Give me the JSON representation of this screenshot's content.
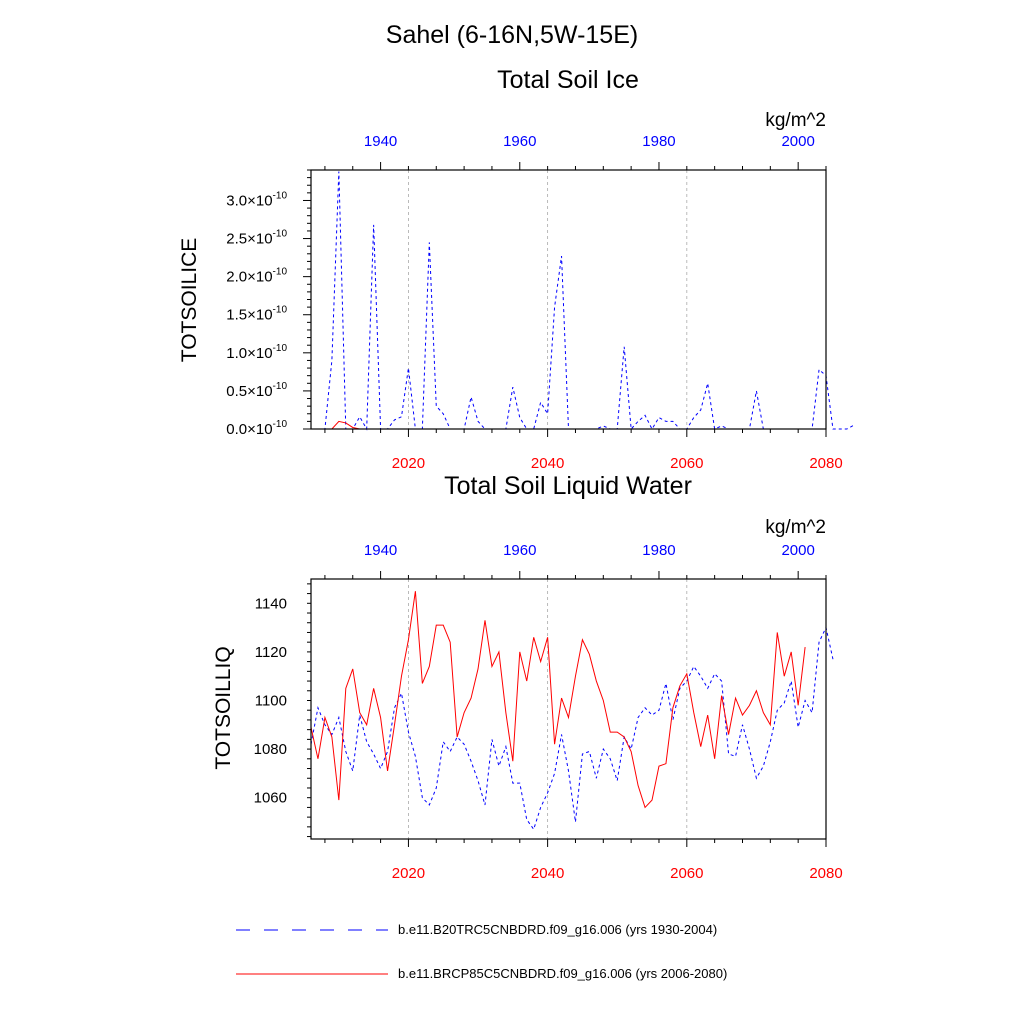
{
  "figure": {
    "main_title": "Sahel (6-16N,5W-15E)",
    "legend": [
      {
        "label": "b.e11.B20TRC5CNBDRD.f09_g16.006 (yrs 1930-2004)",
        "color": "#0000ff",
        "dash": "dashed"
      },
      {
        "label": "b.e11.BRCP85C5CNBDRD.f09_g16.006 (yrs 2006-2080)",
        "color": "#ff0000",
        "dash": "solid"
      }
    ]
  },
  "chart_data": [
    {
      "type": "line",
      "title": "Total Soil Ice",
      "units": "kg/m^2",
      "ylabel": "TOTSOILICE",
      "ylim": [
        0,
        3.4e-10
      ],
      "yticks": [
        0,
        5e-11,
        1e-10,
        1.5e-10,
        2e-10,
        2.5e-10,
        3e-10
      ],
      "ytick_labels": [
        {
          "mant": "0.0",
          "exp": "-10"
        },
        {
          "mant": "0.5",
          "exp": "-10"
        },
        {
          "mant": "1.0",
          "exp": "-10"
        },
        {
          "mant": "1.5",
          "exp": "-10"
        },
        {
          "mant": "2.0",
          "exp": "-10"
        },
        {
          "mant": "2.5",
          "exp": "-10"
        },
        {
          "mant": "3.0",
          "exp": "-10"
        }
      ],
      "times_sign": "×10",
      "bottom_axis": {
        "range": [
          2006,
          2080
        ],
        "ticks": [
          2020,
          2040,
          2060,
          2080
        ],
        "tick_labels": [
          "2020",
          "2040",
          "2060",
          "2080"
        ],
        "color": "#ff0000"
      },
      "top_axis": {
        "range": [
          1930,
          2004
        ],
        "ticks": [
          1940,
          1960,
          1980,
          2000
        ],
        "tick_labels": [
          "1940",
          "1960",
          "1980",
          "2000"
        ],
        "color": "#0000ff"
      },
      "grid_x": [
        2020,
        2040,
        2060
      ],
      "series": [
        {
          "name": "b.e11.B20TRC5CNBDRD.f09_g16.006 (yrs 1930-2004)",
          "color": "#0000ff",
          "dash": "dashed",
          "x_start": 1930,
          "values": [
            0,
            0,
            0,
            9e-11,
            3.38e-10,
            0,
            0,
            1.6e-11,
            0,
            2.68e-10,
            0,
            0,
            1.2e-11,
            1.6e-11,
            8e-11,
            0,
            0,
            2.45e-10,
            3e-11,
            2e-11,
            0,
            0,
            0,
            4.2e-11,
            1e-11,
            0,
            0,
            0,
            0,
            5.5e-11,
            1.5e-11,
            0,
            0,
            3.5e-11,
            2e-11,
            1.6e-10,
            2.27e-10,
            0,
            0,
            0,
            0,
            0,
            4e-12,
            0,
            0,
            1.08e-10,
            0,
            1e-11,
            1.8e-11,
            0,
            1.5e-11,
            1e-11,
            1e-11,
            0,
            0,
            1.5e-11,
            2.5e-11,
            6e-11,
            0,
            4e-12,
            0,
            0,
            0,
            0,
            5e-11,
            0,
            0,
            0,
            0,
            0,
            0,
            0,
            0,
            7.8e-11,
            7e-11,
            0,
            0,
            0,
            5e-12
          ]
        },
        {
          "name": "b.e11.BRCP85C5CNBDRD.f09_g16.006 (yrs 2006-2080)",
          "color": "#ff0000",
          "dash": "solid",
          "x_start": 2006,
          "values": [
            0,
            0,
            0,
            0,
            1e-11,
            8e-12,
            2e-12,
            0,
            0,
            0,
            0,
            0,
            0,
            0,
            0,
            0,
            0,
            0,
            0,
            0,
            0,
            0,
            0,
            0,
            0,
            0,
            0,
            0,
            0,
            0,
            0,
            0,
            0,
            0,
            0,
            0,
            0,
            0,
            0,
            0,
            0,
            0,
            0,
            0,
            0,
            0,
            0,
            0,
            0,
            0,
            0,
            0,
            0,
            0,
            0,
            0,
            0,
            0,
            0,
            0,
            0,
            0,
            0,
            0,
            0,
            0,
            0,
            0,
            0,
            0,
            0,
            0,
            0,
            0,
            0
          ]
        }
      ]
    },
    {
      "type": "line",
      "title": "Total Soil Liquid Water",
      "units": "kg/m^2",
      "ylabel": "TOTSOILLIQ",
      "ylim": [
        1043,
        1150
      ],
      "yticks": [
        1060,
        1080,
        1100,
        1120,
        1140
      ],
      "ytick_labels": [
        "1060",
        "1080",
        "1100",
        "1120",
        "1140"
      ],
      "bottom_axis": {
        "range": [
          2006,
          2080
        ],
        "ticks": [
          2020,
          2040,
          2060,
          2080
        ],
        "tick_labels": [
          "2020",
          "2040",
          "2060",
          "2080"
        ],
        "color": "#ff0000"
      },
      "top_axis": {
        "range": [
          1930,
          2004
        ],
        "ticks": [
          1940,
          1960,
          1980,
          2000
        ],
        "tick_labels": [
          "1940",
          "1960",
          "1980",
          "2000"
        ],
        "color": "#0000ff"
      },
      "grid_x": [
        2020,
        2040,
        2060
      ],
      "series": [
        {
          "name": "b.e11.B20TRC5CNBDRD.f09_g16.006 (yrs 1930-2004)",
          "color": "#0000ff",
          "dash": "dashed",
          "x_start": 1930,
          "values": [
            1082,
            1097,
            1090,
            1086,
            1093,
            1079,
            1071,
            1094,
            1083,
            1078,
            1072,
            1079,
            1097,
            1103,
            1087,
            1077,
            1060,
            1057,
            1064,
            1083,
            1079,
            1085,
            1082,
            1075,
            1067,
            1057,
            1084,
            1073,
            1081,
            1066,
            1066,
            1051,
            1047,
            1056,
            1062,
            1070,
            1086,
            1071,
            1050,
            1078,
            1079,
            1068,
            1080,
            1076,
            1067,
            1085,
            1080,
            1093,
            1097,
            1094,
            1096,
            1107,
            1092,
            1105,
            1108,
            1114,
            1110,
            1105,
            1111,
            1108,
            1078,
            1077,
            1090,
            1080,
            1068,
            1073,
            1083,
            1096,
            1099,
            1108,
            1089,
            1100,
            1095,
            1124,
            1130,
            1117
          ]
        },
        {
          "name": "b.e11.BRCP85C5CNBDRD.f09_g16.006 (yrs 2006-2080)",
          "color": "#ff0000",
          "dash": "solid",
          "x_start": 2006,
          "values": [
            1089,
            1076,
            1093,
            1085,
            1059,
            1105,
            1113,
            1095,
            1090,
            1105,
            1093,
            1071,
            1090,
            1110,
            1125,
            1145,
            1107,
            1114,
            1131,
            1131,
            1124,
            1085,
            1095,
            1101,
            1113,
            1133,
            1114,
            1120,
            1095,
            1075,
            1120,
            1108,
            1126,
            1116,
            1126,
            1082,
            1101,
            1093,
            1110,
            1125,
            1119,
            1108,
            1100,
            1087,
            1087,
            1085,
            1079,
            1065,
            1056,
            1059,
            1073,
            1074,
            1097,
            1106,
            1111,
            1095,
            1081,
            1094,
            1076,
            1102,
            1086,
            1101,
            1094,
            1098,
            1104,
            1095,
            1090,
            1128,
            1110,
            1120,
            1098,
            1122
          ]
        }
      ]
    }
  ]
}
